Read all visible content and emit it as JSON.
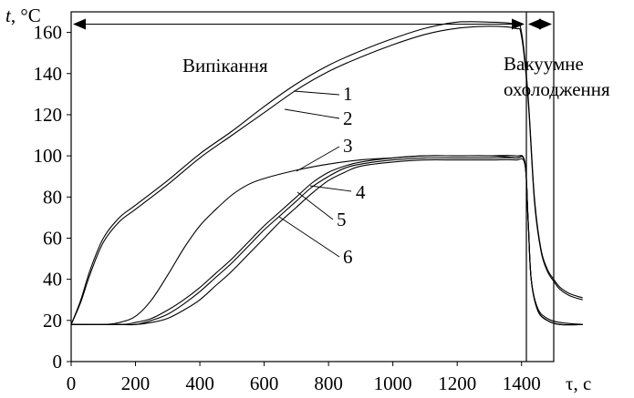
{
  "chart_data": {
    "type": "line",
    "y_axis_title": {
      "italic": "t",
      "rest": ", °C"
    },
    "x_axis_title": "τ, с",
    "xlim": [
      0,
      1500
    ],
    "ylim": [
      0,
      170
    ],
    "x_ticks": [
      0,
      200,
      400,
      600,
      800,
      1000,
      1200,
      1400
    ],
    "y_ticks": [
      0,
      20,
      40,
      60,
      80,
      100,
      120,
      140,
      160
    ],
    "grid": false,
    "legend": "none",
    "phases": [
      {
        "label": "Випікання",
        "x_start": 0,
        "x_end": 1415,
        "y": 164
      },
      {
        "label_line1": "Вакуумне",
        "label_line2": "охолодження",
        "x_start": 1415,
        "x_end": 1500,
        "y": 164
      }
    ],
    "phase_boundary_x": 1415,
    "series": [
      {
        "name": "1",
        "label_anchor": {
          "x": 800,
          "y": 142
        },
        "points": [
          [
            0,
            18
          ],
          [
            30,
            30
          ],
          [
            60,
            45
          ],
          [
            100,
            60
          ],
          [
            150,
            70
          ],
          [
            200,
            76
          ],
          [
            300,
            88
          ],
          [
            400,
            101
          ],
          [
            500,
            112
          ],
          [
            600,
            124
          ],
          [
            700,
            135
          ],
          [
            800,
            144
          ],
          [
            900,
            151
          ],
          [
            1000,
            157
          ],
          [
            1100,
            162
          ],
          [
            1200,
            165
          ],
          [
            1300,
            165
          ],
          [
            1380,
            164
          ],
          [
            1400,
            160
          ],
          [
            1420,
            130
          ],
          [
            1440,
            80
          ],
          [
            1460,
            55
          ],
          [
            1480,
            45
          ],
          [
            1500,
            40
          ],
          [
            1520,
            36
          ],
          [
            1550,
            33
          ],
          [
            1590,
            31
          ]
        ]
      },
      {
        "name": "2",
        "label_anchor": {
          "x": 780,
          "y": 135
        },
        "points": [
          [
            0,
            18
          ],
          [
            30,
            29
          ],
          [
            60,
            43
          ],
          [
            100,
            58
          ],
          [
            150,
            68
          ],
          [
            200,
            74
          ],
          [
            300,
            86
          ],
          [
            400,
            99
          ],
          [
            500,
            110
          ],
          [
            600,
            121
          ],
          [
            700,
            132
          ],
          [
            800,
            141
          ],
          [
            900,
            148
          ],
          [
            1000,
            154
          ],
          [
            1100,
            159
          ],
          [
            1200,
            162
          ],
          [
            1300,
            163
          ],
          [
            1380,
            162
          ],
          [
            1400,
            158
          ],
          [
            1420,
            128
          ],
          [
            1440,
            78
          ],
          [
            1460,
            54
          ],
          [
            1480,
            44
          ],
          [
            1500,
            39
          ],
          [
            1520,
            35
          ],
          [
            1550,
            32
          ],
          [
            1590,
            30
          ]
        ]
      },
      {
        "name": "3",
        "label_anchor": {
          "x": 740,
          "y": 95
        },
        "points": [
          [
            0,
            18
          ],
          [
            100,
            18
          ],
          [
            150,
            19
          ],
          [
            200,
            22
          ],
          [
            250,
            30
          ],
          [
            300,
            42
          ],
          [
            350,
            55
          ],
          [
            400,
            66
          ],
          [
            450,
            74
          ],
          [
            500,
            81
          ],
          [
            550,
            86
          ],
          [
            600,
            89
          ],
          [
            700,
            93
          ],
          [
            800,
            96
          ],
          [
            900,
            98
          ],
          [
            1000,
            99
          ],
          [
            1100,
            100
          ],
          [
            1200,
            100
          ],
          [
            1300,
            100
          ],
          [
            1380,
            100
          ],
          [
            1410,
            97
          ],
          [
            1420,
            70
          ],
          [
            1430,
            40
          ],
          [
            1450,
            26
          ],
          [
            1480,
            21
          ],
          [
            1520,
            19
          ],
          [
            1590,
            18
          ]
        ]
      },
      {
        "name": "4",
        "label_anchor": {
          "x": 780,
          "y": 90
        },
        "points": [
          [
            0,
            18
          ],
          [
            150,
            18
          ],
          [
            200,
            19
          ],
          [
            250,
            21
          ],
          [
            300,
            25
          ],
          [
            350,
            30
          ],
          [
            400,
            36
          ],
          [
            450,
            43
          ],
          [
            500,
            50
          ],
          [
            550,
            58
          ],
          [
            600,
            66
          ],
          [
            650,
            73
          ],
          [
            700,
            80
          ],
          [
            750,
            87
          ],
          [
            800,
            92
          ],
          [
            850,
            95
          ],
          [
            900,
            97
          ],
          [
            1000,
            99
          ],
          [
            1100,
            100
          ],
          [
            1200,
            100
          ],
          [
            1300,
            100
          ],
          [
            1380,
            99
          ],
          [
            1410,
            97
          ],
          [
            1420,
            70
          ],
          [
            1430,
            40
          ],
          [
            1450,
            25
          ],
          [
            1480,
            20
          ],
          [
            1520,
            18
          ],
          [
            1590,
            18
          ]
        ]
      },
      {
        "name": "5",
        "label_anchor": {
          "x": 760,
          "y": 85
        },
        "points": [
          [
            0,
            18
          ],
          [
            150,
            18
          ],
          [
            200,
            18
          ],
          [
            250,
            20
          ],
          [
            300,
            23
          ],
          [
            350,
            28
          ],
          [
            400,
            34
          ],
          [
            450,
            41
          ],
          [
            500,
            48
          ],
          [
            550,
            56
          ],
          [
            600,
            64
          ],
          [
            650,
            71
          ],
          [
            700,
            78
          ],
          [
            750,
            85
          ],
          [
            800,
            90
          ],
          [
            850,
            94
          ],
          [
            900,
            96
          ],
          [
            1000,
            98
          ],
          [
            1100,
            99
          ],
          [
            1200,
            99
          ],
          [
            1300,
            99
          ],
          [
            1380,
            99
          ],
          [
            1410,
            97
          ],
          [
            1420,
            70
          ],
          [
            1430,
            40
          ],
          [
            1450,
            25
          ],
          [
            1480,
            20
          ],
          [
            1520,
            18
          ],
          [
            1590,
            18
          ]
        ]
      },
      {
        "name": "6",
        "label_anchor": {
          "x": 740,
          "y": 82
        },
        "points": [
          [
            0,
            18
          ],
          [
            150,
            18
          ],
          [
            200,
            18
          ],
          [
            250,
            19
          ],
          [
            300,
            21
          ],
          [
            350,
            25
          ],
          [
            400,
            30
          ],
          [
            450,
            37
          ],
          [
            500,
            44
          ],
          [
            550,
            52
          ],
          [
            600,
            60
          ],
          [
            650,
            68
          ],
          [
            700,
            75
          ],
          [
            750,
            82
          ],
          [
            800,
            88
          ],
          [
            850,
            92
          ],
          [
            900,
            95
          ],
          [
            1000,
            97
          ],
          [
            1100,
            98
          ],
          [
            1200,
            98
          ],
          [
            1300,
            98
          ],
          [
            1380,
            98
          ],
          [
            1410,
            96
          ],
          [
            1420,
            70
          ],
          [
            1430,
            40
          ],
          [
            1450,
            25
          ],
          [
            1480,
            20
          ],
          [
            1520,
            18
          ],
          [
            1590,
            18
          ]
        ]
      }
    ]
  }
}
